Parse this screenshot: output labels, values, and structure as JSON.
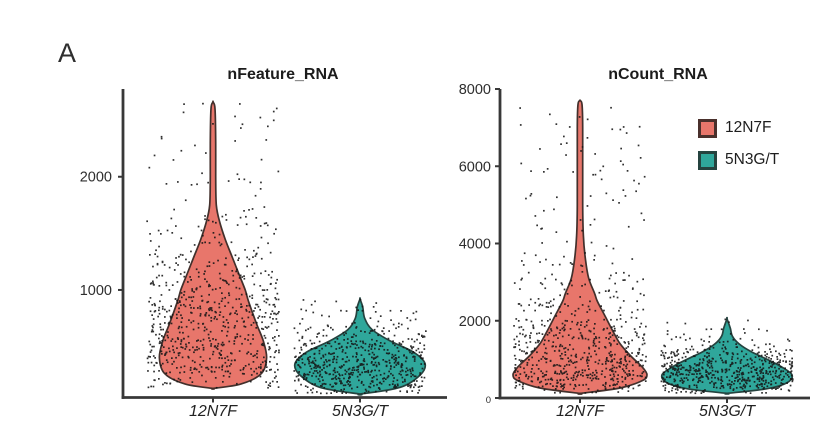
{
  "panel": {
    "label": "A"
  },
  "legend": {
    "items": [
      {
        "label": "12N7F",
        "color": "#E8766B",
        "border": "#4A302C"
      },
      {
        "label": "5N3G/T",
        "color": "#2FA79B",
        "border": "#25433F"
      }
    ]
  },
  "colors": {
    "axis": "#383838",
    "tick_text": "#2e2e2e",
    "dot": "#151515",
    "background": "#ffffff"
  },
  "chart_data": [
    {
      "type": "violin",
      "title": "nFeature_RNA",
      "categories": [
        "12N7F",
        "5N3G/T"
      ],
      "ylim": [
        50,
        2775
      ],
      "yticks": [
        1000,
        2000
      ],
      "small_ticks": [],
      "legend_shown": false,
      "series": [
        {
          "name": "12N7F",
          "color": "#E8766B",
          "outline": "#43302C",
          "n_points": 720,
          "outlier_frac": 0.08,
          "profile": [
            [
              130,
              0
            ],
            [
              170,
              0.42
            ],
            [
              260,
              0.72
            ],
            [
              400,
              0.8
            ],
            [
              550,
              0.75
            ],
            [
              700,
              0.65
            ],
            [
              900,
              0.53
            ],
            [
              1000,
              0.48
            ],
            [
              1150,
              0.38
            ],
            [
              1300,
              0.28
            ],
            [
              1450,
              0.18
            ],
            [
              1600,
              0.1
            ],
            [
              1750,
              0.05
            ],
            [
              2000,
              0.04
            ],
            [
              2300,
              0.04
            ],
            [
              2600,
              0.03
            ],
            [
              2660,
              0
            ]
          ]
        },
        {
          "name": "5N3G/T",
          "color": "#2FA79B",
          "outline": "#25433F",
          "n_points": 620,
          "outlier_frac": 0.1,
          "profile": [
            [
              80,
              0
            ],
            [
              140,
              0.6
            ],
            [
              250,
              0.9
            ],
            [
              350,
              0.97
            ],
            [
              450,
              0.8
            ],
            [
              550,
              0.45
            ],
            [
              650,
              0.18
            ],
            [
              750,
              0.07
            ],
            [
              850,
              0.04
            ],
            [
              920,
              0
            ]
          ]
        }
      ]
    },
    {
      "type": "violin",
      "title": "nCount_RNA",
      "categories": [
        "12N7F",
        "5N3G/T"
      ],
      "ylim": [
        0,
        8000
      ],
      "yticks": [
        0,
        2000,
        4000,
        6000,
        8000
      ],
      "small_ticks": [
        0
      ],
      "legend_shown": true,
      "series": [
        {
          "name": "12N7F",
          "color": "#E8766B",
          "outline": "#43302C",
          "n_points": 700,
          "outlier_frac": 0.05,
          "profile": [
            [
              120,
              0
            ],
            [
              260,
              0.6
            ],
            [
              450,
              0.93
            ],
            [
              600,
              1.0
            ],
            [
              800,
              0.93
            ],
            [
              1100,
              0.75
            ],
            [
              1400,
              0.6
            ],
            [
              1700,
              0.5
            ],
            [
              2100,
              0.38
            ],
            [
              2500,
              0.26
            ],
            [
              2700,
              0.22
            ],
            [
              3100,
              0.13
            ],
            [
              3600,
              0.08
            ],
            [
              4200,
              0.05
            ],
            [
              5000,
              0.04
            ],
            [
              7000,
              0.04
            ],
            [
              7600,
              0.03
            ],
            [
              7700,
              0
            ]
          ]
        },
        {
          "name": "5N3G/T",
          "color": "#2FA79B",
          "outline": "#25433F",
          "n_points": 600,
          "outlier_frac": 0.07,
          "profile": [
            [
              120,
              0
            ],
            [
              240,
              0.6
            ],
            [
              400,
              0.9
            ],
            [
              600,
              0.97
            ],
            [
              800,
              0.82
            ],
            [
              1000,
              0.6
            ],
            [
              1200,
              0.36
            ],
            [
              1400,
              0.18
            ],
            [
              1600,
              0.08
            ],
            [
              1800,
              0.05
            ],
            [
              2050,
              0
            ]
          ]
        }
      ]
    }
  ]
}
